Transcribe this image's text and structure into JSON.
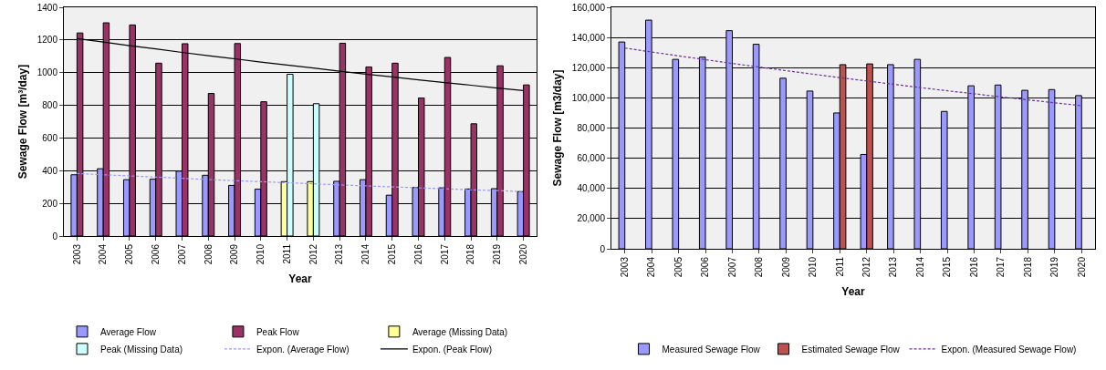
{
  "chart_data": [
    {
      "type": "bar",
      "xlabel": "Year",
      "ylabel": "Sewage Flow [m³/day]",
      "categories": [
        "2003",
        "2004",
        "2005",
        "2006",
        "2007",
        "2008",
        "2009",
        "2010",
        "2011",
        "2012",
        "2013",
        "2014",
        "2015",
        "2016",
        "2017",
        "2018",
        "2019",
        "2020"
      ],
      "series": [
        {
          "name": "Average Flow",
          "color": "#9999ff",
          "values": [
            375,
            412,
            345,
            348,
            397,
            372,
            310,
            287,
            null,
            null,
            335,
            345,
            250,
            297,
            295,
            288,
            290,
            272
          ]
        },
        {
          "name": "Peak Flow",
          "color": "#993366",
          "values": [
            1243,
            1305,
            1292,
            1058,
            1177,
            873,
            1178,
            822,
            null,
            null,
            1180,
            1035,
            1058,
            845,
            1093,
            687,
            1042,
            925
          ]
        },
        {
          "name": "Average (Missing Data)",
          "color": "#ffff99",
          "values": [
            null,
            null,
            null,
            null,
            null,
            null,
            null,
            null,
            333,
            333,
            null,
            null,
            null,
            null,
            null,
            null,
            null,
            null
          ]
        },
        {
          "name": "Peak (Missing Data)",
          "color": "#ccffff",
          "values": [
            null,
            null,
            null,
            null,
            null,
            null,
            null,
            null,
            990,
            810,
            null,
            null,
            null,
            null,
            null,
            null,
            null,
            null
          ]
        },
        {
          "name": "Expon. (Average Flow)",
          "type": "line",
          "line_style": "dashed",
          "color": "#9999ff",
          "values": [
            383,
            375,
            368,
            361,
            353,
            346,
            339,
            333,
            326,
            320,
            313,
            307,
            301,
            295,
            289,
            283,
            278,
            272
          ]
        },
        {
          "name": "Expon. (Peak Flow)",
          "type": "line",
          "line_style": "solid",
          "color": "#000000",
          "values": [
            1208,
            1187,
            1165,
            1145,
            1124,
            1104,
            1085,
            1065,
            1046,
            1028,
            1009,
            991,
            974,
            956,
            939,
            923,
            906,
            890
          ]
        }
      ],
      "ylim": [
        0,
        1400
      ],
      "yticks": [
        0,
        200,
        400,
        600,
        800,
        1000,
        1200,
        1400
      ],
      "grid": "y",
      "legend": "bottom"
    },
    {
      "type": "bar",
      "xlabel": "Year",
      "ylabel": "Sewage Flow [m3/day]",
      "categories": [
        "2003",
        "2004",
        "2005",
        "2006",
        "2007",
        "2008",
        "2009",
        "2010",
        "2011",
        "2012",
        "2013",
        "2014",
        "2015",
        "2016",
        "2017",
        "2018",
        "2019",
        "2020"
      ],
      "series": [
        {
          "name": "Measured Sewage Flow",
          "color": "#9999ff",
          "values": [
            137000,
            151500,
            125500,
            127000,
            144500,
            135500,
            113000,
            104500,
            90000,
            62500,
            122000,
            125500,
            91000,
            108000,
            108500,
            105000,
            105500,
            101500
          ]
        },
        {
          "name": "Estimated Sewage Flow",
          "color": "#c0504d",
          "values": [
            null,
            null,
            null,
            null,
            null,
            null,
            null,
            null,
            122000,
            122500,
            null,
            null,
            null,
            null,
            null,
            null,
            null,
            null
          ]
        },
        {
          "name": "Expon. (Measured Sewage Flow)",
          "type": "line",
          "line_style": "dashed",
          "color": "#7030a0",
          "values": [
            133000,
            130400,
            127800,
            125300,
            122800,
            120400,
            118000,
            115700,
            113400,
            111200,
            109000,
            106800,
            104700,
            102700,
            100600,
            98700,
            96700,
            94800
          ]
        }
      ],
      "ylim": [
        0,
        160000
      ],
      "yticks": [
        0,
        {
          "value": 20000,
          "label": "20,000"
        },
        {
          "value": 40000,
          "label": "40,000"
        },
        {
          "value": 60000,
          "label": "60,000"
        },
        {
          "value": 80000,
          "label": "80,000"
        },
        {
          "value": 100000,
          "label": "100,000"
        },
        {
          "value": 120000,
          "label": "120,000"
        },
        {
          "value": 140000,
          "label": "140,000"
        },
        {
          "value": 160000,
          "label": "160,000"
        }
      ],
      "grid": "y",
      "legend": "bottom"
    }
  ]
}
